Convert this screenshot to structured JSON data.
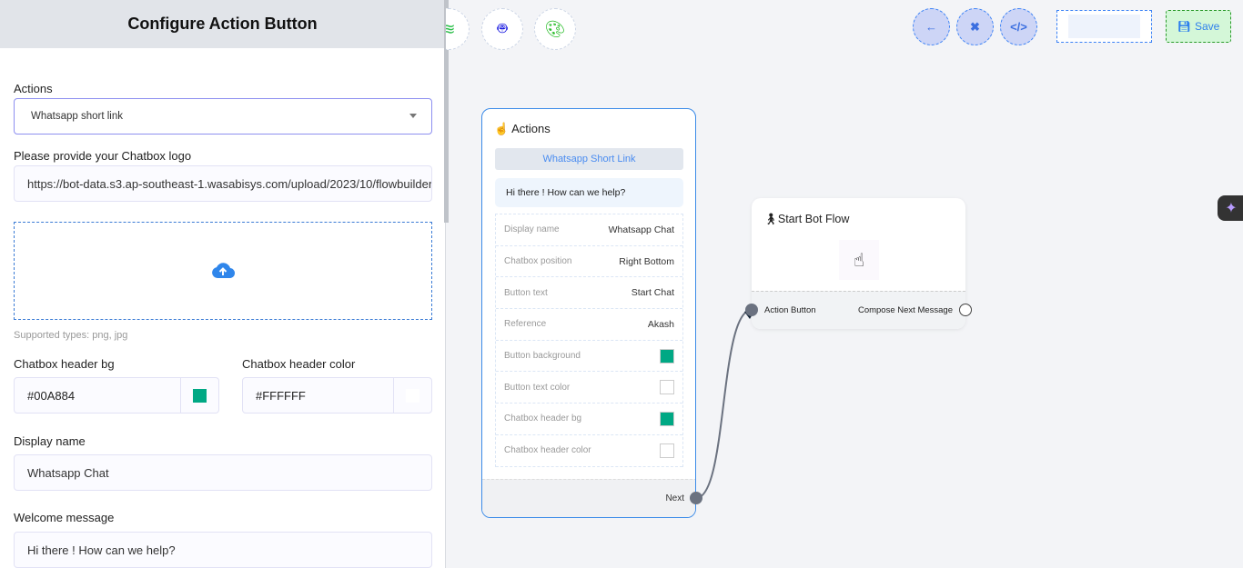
{
  "panel": {
    "title": "Configure Action Button",
    "actions_label": "Actions",
    "actions_value": "Whatsapp short link",
    "logo_label": "Please provide your Chatbox logo",
    "logo_value": "https://bot-data.s3.ap-southeast-1.wasabisys.com/upload/2023/10/flowbuilder",
    "supported": "Supported types: png, jpg",
    "header_bg_label": "Chatbox header bg",
    "header_bg_value": "#00A884",
    "header_color_label": "Chatbox header color",
    "header_color_value": "#FFFFFF",
    "display_name_label": "Display name",
    "display_name_value": "Whatsapp Chat",
    "welcome_label": "Welcome message",
    "welcome_value": "Hi there ! How can we help?"
  },
  "toolbar": {
    "save_label": "Save"
  },
  "actions_node": {
    "title": "Actions",
    "button": "Whatsapp Short Link",
    "message": "Hi there ! How can we help?",
    "rows": [
      {
        "label": "Display name",
        "value": "Whatsapp Chat"
      },
      {
        "label": "Chatbox position",
        "value": "Right Bottom"
      },
      {
        "label": "Button text",
        "value": "Start Chat"
      },
      {
        "label": "Reference",
        "value": "Akash"
      },
      {
        "label": "Button background",
        "color": "#00A884"
      },
      {
        "label": "Button text color",
        "color": "#FFFFFF"
      },
      {
        "label": "Chatbox header bg",
        "color": "#00A884"
      },
      {
        "label": "Chatbox header color",
        "color": "#FFFFFF"
      }
    ],
    "next": "Next"
  },
  "start_node": {
    "title": "Start Bot Flow",
    "input": "Action Button",
    "output": "Compose Next Message"
  }
}
